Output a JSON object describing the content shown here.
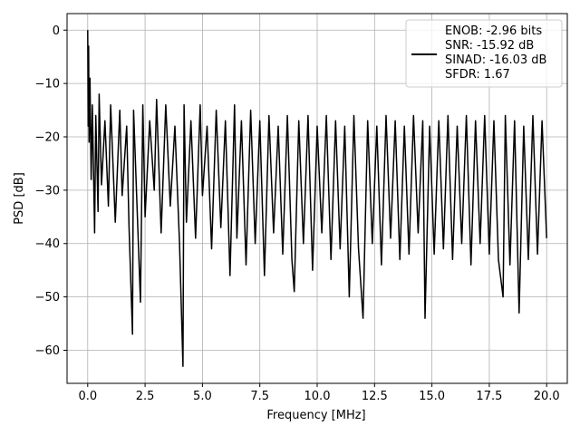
{
  "chart_data": {
    "type": "line",
    "title": "",
    "xlabel": "Frequency [MHz]",
    "ylabel": "PSD [dB]",
    "xlim": [
      -0.9,
      20.9
    ],
    "ylim": [
      -66.2,
      3.1
    ],
    "xticks": [
      0.0,
      2.5,
      5.0,
      7.5,
      10.0,
      12.5,
      15.0,
      17.5,
      20.0
    ],
    "xtick_labels": [
      "0.0",
      "2.5",
      "5.0",
      "7.5",
      "10.0",
      "12.5",
      "15.0",
      "17.5",
      "20.0"
    ],
    "yticks": [
      0,
      -10,
      -20,
      -30,
      -40,
      -50,
      -60
    ],
    "ytick_labels": [
      "0",
      "−10",
      "−20",
      "−30",
      "−40",
      "−50",
      "−60"
    ],
    "grid": true,
    "legend_position": "top-right",
    "legend_lines": [
      "ENOB: -2.96 bits",
      "SNR: -15.92 dB",
      "SINAD: -16.03 dB",
      "SFDR: 1.67"
    ],
    "series": [
      {
        "color": "#000000",
        "x": [
          0.0,
          0.02,
          0.04,
          0.06,
          0.1,
          0.15,
          0.2,
          0.3,
          0.35,
          0.45,
          0.5,
          0.6,
          0.75,
          0.9,
          1.0,
          1.2,
          1.4,
          1.5,
          1.7,
          1.8,
          1.95,
          2.0,
          2.15,
          2.3,
          2.4,
          2.5,
          2.7,
          2.9,
          3.0,
          3.2,
          3.4,
          3.6,
          3.8,
          4.0,
          4.15,
          4.2,
          4.3,
          4.5,
          4.7,
          4.9,
          5.0,
          5.2,
          5.4,
          5.6,
          5.8,
          6.0,
          6.2,
          6.4,
          6.5,
          6.7,
          6.9,
          7.1,
          7.3,
          7.5,
          7.7,
          7.9,
          8.1,
          8.3,
          8.5,
          8.7,
          8.9,
          9.0,
          9.2,
          9.4,
          9.6,
          9.8,
          10.0,
          10.2,
          10.4,
          10.6,
          10.8,
          11.0,
          11.2,
          11.4,
          11.6,
          11.8,
          12.0,
          12.2,
          12.4,
          12.6,
          12.8,
          13.0,
          13.2,
          13.4,
          13.6,
          13.8,
          14.0,
          14.2,
          14.4,
          14.6,
          14.7,
          14.9,
          15.1,
          15.3,
          15.5,
          15.7,
          15.9,
          16.1,
          16.3,
          16.5,
          16.7,
          16.9,
          17.1,
          17.3,
          17.5,
          17.7,
          17.9,
          18.1,
          18.2,
          18.4,
          18.6,
          18.8,
          19.0,
          19.2,
          19.4,
          19.6,
          19.8,
          20.0
        ],
        "y": [
          0.0,
          -18.0,
          -3.0,
          -21.0,
          -9.0,
          -28.0,
          -14.0,
          -38.0,
          -16.0,
          -34.0,
          -12.0,
          -29.0,
          -17.0,
          -33.0,
          -14.0,
          -36.0,
          -15.0,
          -31.0,
          -18.0,
          -37.0,
          -57.0,
          -15.0,
          -33.0,
          -51.0,
          -14.0,
          -35.0,
          -17.0,
          -30.0,
          -13.0,
          -38.0,
          -14.0,
          -33.0,
          -18.0,
          -40.0,
          -63.0,
          -14.0,
          -36.0,
          -17.0,
          -39.0,
          -14.0,
          -31.0,
          -18.0,
          -41.0,
          -15.0,
          -37.0,
          -17.0,
          -46.0,
          -14.0,
          -39.0,
          -17.0,
          -44.0,
          -15.0,
          -40.0,
          -17.0,
          -46.0,
          -16.0,
          -38.0,
          -18.0,
          -42.0,
          -16.0,
          -43.0,
          -49.0,
          -17.0,
          -40.0,
          -16.0,
          -45.0,
          -18.0,
          -38.0,
          -16.0,
          -43.0,
          -17.0,
          -41.0,
          -18.0,
          -50.0,
          -16.0,
          -41.0,
          -54.0,
          -17.0,
          -40.0,
          -18.0,
          -44.0,
          -16.0,
          -39.0,
          -17.0,
          -43.0,
          -18.0,
          -42.0,
          -16.0,
          -38.0,
          -17.0,
          -54.0,
          -18.0,
          -42.0,
          -17.0,
          -41.0,
          -16.0,
          -43.0,
          -18.0,
          -40.0,
          -16.0,
          -44.0,
          -17.0,
          -40.0,
          -16.0,
          -42.0,
          -17.0,
          -43.0,
          -50.0,
          -16.0,
          -44.0,
          -17.0,
          -53.0,
          -18.0,
          -43.0,
          -16.0,
          -42.0,
          -17.0,
          -39.0
        ]
      }
    ]
  }
}
